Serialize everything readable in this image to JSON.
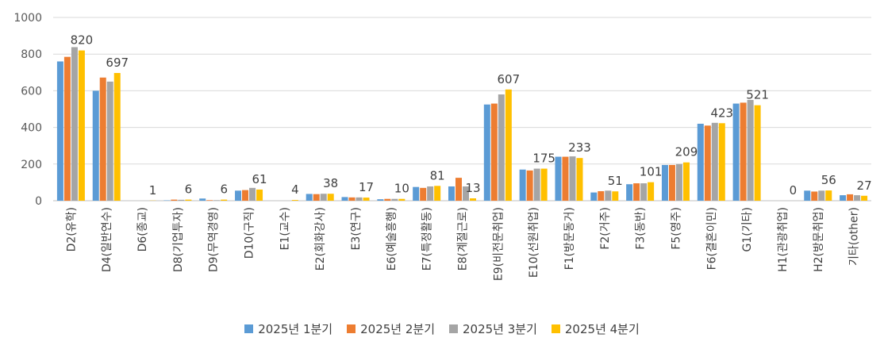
{
  "chart_data": {
    "type": "bar",
    "ylim": [
      0,
      1000
    ],
    "yticks": [
      0,
      200,
      400,
      600,
      800,
      1000
    ],
    "grid": true,
    "legend_position": "bottom",
    "categories": [
      "D2(유학)",
      "D4(일반연수)",
      "D6(종교)",
      "D8(기업투자)",
      "D9(무역경영)",
      "D10(구직)",
      "E1(교수)",
      "E2(회화강사)",
      "E3(연구)",
      "E6(예술흥행)",
      "E7(특정활동)",
      "E8(계절근로)",
      "E9(비전문취업)",
      "E10(선원취업)",
      "F1(방문동거)",
      "F2(거주)",
      "F3(동반)",
      "F5(영주)",
      "F6(결혼이민)",
      "G1(기타)",
      "H1(관광취업)",
      "H2(방문취업)",
      "기타(other)"
    ],
    "series": [
      {
        "name": "2025년 1분기",
        "color": "#5B9BD5",
        "values": [
          760,
          600,
          0,
          2,
          12,
          55,
          0,
          37,
          20,
          8,
          75,
          78,
          525,
          170,
          240,
          45,
          90,
          195,
          420,
          530,
          0,
          55,
          30
        ]
      },
      {
        "name": "2025년 2분기",
        "color": "#ED7D31",
        "values": [
          785,
          672,
          0,
          6,
          3,
          58,
          0,
          36,
          18,
          10,
          70,
          125,
          530,
          165,
          240,
          52,
          95,
          195,
          410,
          535,
          0,
          50,
          35
        ]
      },
      {
        "name": "2025년 3분기",
        "color": "#A5A5A5",
        "values": [
          838,
          650,
          0,
          5,
          3,
          70,
          0,
          38,
          18,
          10,
          78,
          78,
          580,
          175,
          242,
          55,
          95,
          200,
          425,
          550,
          0,
          55,
          30
        ]
      },
      {
        "name": "2025년 4분기",
        "color": "#FFC000",
        "values": [
          820,
          697,
          1,
          6,
          6,
          61,
          4,
          38,
          17,
          10,
          81,
          13,
          607,
          175,
          233,
          51,
          101,
          209,
          423,
          521,
          0,
          56,
          27
        ]
      }
    ],
    "data_labels": {
      "series": "2025년 4분기",
      "values": [
        820,
        697,
        1,
        6,
        6,
        61,
        4,
        38,
        17,
        10,
        81,
        13,
        607,
        175,
        233,
        51,
        101,
        209,
        423,
        521,
        0,
        56,
        27
      ]
    }
  }
}
